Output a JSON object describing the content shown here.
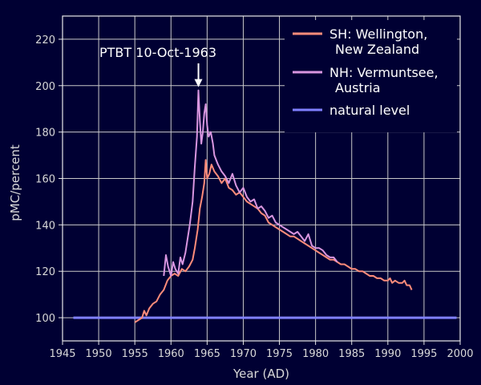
{
  "chart_data": {
    "type": "line",
    "title": "",
    "xlabel": "Year (AD)",
    "ylabel": "pMC/percent",
    "xlim": [
      1945,
      2000
    ],
    "ylim": [
      90,
      230
    ],
    "xticks": [
      1945,
      1950,
      1955,
      1960,
      1965,
      1970,
      1975,
      1980,
      1985,
      1990,
      1995,
      2000
    ],
    "yticks": [
      100,
      120,
      140,
      160,
      180,
      200,
      220
    ],
    "grid": true,
    "legend_position": "top-right",
    "annotation": {
      "text": "PTBT 10-Oct-1963",
      "x": 1963.8,
      "y": 199
    },
    "series": [
      {
        "name": "SH: Wellington,",
        "name_line2": "New Zealand",
        "color": "#ff8c7a",
        "x": [
          1955.0,
          1955.5,
          1956.0,
          1956.3,
          1956.6,
          1957.0,
          1957.5,
          1958.0,
          1958.5,
          1959.0,
          1959.5,
          1960.0,
          1960.5,
          1961.0,
          1961.5,
          1962.0,
          1962.5,
          1963.0,
          1963.3,
          1963.7,
          1964.0,
          1964.3,
          1964.6,
          1964.8,
          1965.0,
          1965.3,
          1965.6,
          1966.0,
          1966.5,
          1967.0,
          1967.5,
          1968.0,
          1968.5,
          1969.0,
          1969.5,
          1970.0,
          1970.5,
          1971.0,
          1971.5,
          1972.0,
          1972.5,
          1973.0,
          1973.5,
          1974.0,
          1974.5,
          1975.0,
          1975.5,
          1976.0,
          1976.5,
          1977.0,
          1977.5,
          1978.0,
          1978.5,
          1979.0,
          1979.5,
          1980.0,
          1980.5,
          1981.0,
          1981.5,
          1982.0,
          1982.5,
          1983.0,
          1983.5,
          1984.0,
          1984.5,
          1985.0,
          1985.5,
          1986.0,
          1986.5,
          1987.0,
          1987.5,
          1988.0,
          1988.5,
          1989.0,
          1989.5,
          1990.0,
          1990.3,
          1990.6,
          1991.0,
          1991.5,
          1992.0,
          1992.3,
          1992.6,
          1993.0,
          1993.3
        ],
        "values": [
          98,
          99,
          100,
          103,
          101,
          104,
          106,
          107,
          110,
          112,
          116,
          118,
          119,
          118,
          121,
          120,
          122,
          125,
          130,
          138,
          147,
          152,
          158,
          168,
          160,
          162,
          166,
          163,
          161,
          158,
          160,
          156,
          155,
          153,
          154,
          152,
          150,
          149,
          148,
          147,
          145,
          144,
          141,
          140,
          139,
          138,
          137,
          136,
          135,
          135,
          134,
          133,
          132,
          131,
          130,
          129,
          128,
          127,
          126,
          125,
          125,
          124,
          123,
          123,
          122,
          121,
          121,
          120,
          120,
          119,
          118,
          118,
          117,
          117,
          116,
          116,
          117,
          115,
          116,
          115,
          115,
          116,
          114,
          114,
          112
        ]
      },
      {
        "name": "NH: Vermuntsee,",
        "name_line2": "Austria",
        "color": "#d896e0",
        "x": [
          1959.0,
          1959.3,
          1959.6,
          1960.0,
          1960.3,
          1960.6,
          1961.0,
          1961.3,
          1961.6,
          1962.0,
          1962.3,
          1962.6,
          1963.0,
          1963.3,
          1963.6,
          1963.8,
          1964.0,
          1964.2,
          1964.4,
          1964.6,
          1964.8,
          1965.0,
          1965.2,
          1965.5,
          1965.8,
          1966.0,
          1966.5,
          1967.0,
          1967.5,
          1968.0,
          1968.5,
          1969.0,
          1969.5,
          1970.0,
          1970.5,
          1971.0,
          1971.5,
          1972.0,
          1972.5,
          1973.0,
          1973.5,
          1974.0,
          1974.5,
          1975.0,
          1975.5,
          1976.0,
          1976.5,
          1977.0,
          1977.5,
          1978.0,
          1978.5,
          1979.0,
          1979.5,
          1980.0,
          1980.5,
          1981.0,
          1981.5,
          1982.0,
          1982.5,
          1983.0
        ],
        "values": [
          118,
          127,
          122,
          118,
          124,
          121,
          119,
          126,
          123,
          128,
          134,
          140,
          150,
          165,
          178,
          198,
          185,
          175,
          180,
          188,
          192,
          183,
          178,
          180,
          175,
          170,
          166,
          163,
          161,
          158,
          162,
          157,
          154,
          156,
          152,
          150,
          151,
          147,
          148,
          146,
          143,
          144,
          141,
          140,
          139,
          138,
          137,
          136,
          137,
          135,
          133,
          136,
          131,
          130,
          130,
          129,
          127,
          126,
          126,
          124
        ]
      },
      {
        "name": "natural level",
        "name_line2": "",
        "color": "#8080ff",
        "x": [
          1946.5,
          1999.5
        ],
        "values": [
          100,
          100
        ]
      }
    ]
  }
}
